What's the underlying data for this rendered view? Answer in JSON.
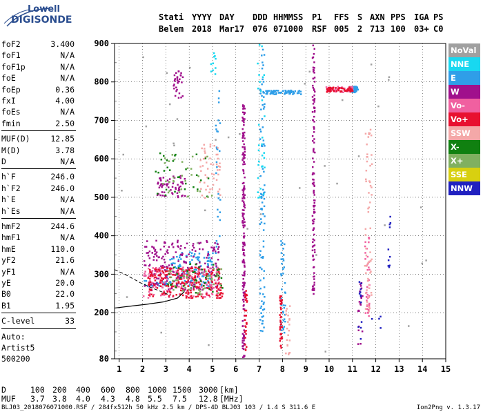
{
  "logo": {
    "line1": "Lowell",
    "line2": "DIGISONDE"
  },
  "header": {
    "labels": [
      "Stati",
      "YYYY",
      "DAY",
      "DDD",
      "HHMMSS",
      "P1",
      "FFS",
      "S",
      "AXN",
      "PPS",
      "IGA",
      "PS"
    ],
    "values": [
      "Belem",
      "2018",
      "Mar17",
      "076",
      "071000",
      "RSF",
      "005",
      "2",
      "713",
      "100",
      "03+",
      "C0"
    ]
  },
  "params": {
    "group1": [
      {
        "k": "foF2",
        "v": "3.400"
      },
      {
        "k": "foF1",
        "v": "N/A"
      },
      {
        "k": "foF1p",
        "v": "N/A"
      },
      {
        "k": "foE",
        "v": "N/A"
      },
      {
        "k": "foEp",
        "v": "0.36"
      },
      {
        "k": "fxI",
        "v": "4.00"
      },
      {
        "k": "foEs",
        "v": "N/A"
      },
      {
        "k": "fmin",
        "v": "2.50"
      }
    ],
    "group2": [
      {
        "k": "MUF(D)",
        "v": "12.85"
      },
      {
        "k": "M(D)",
        "v": "3.78"
      },
      {
        "k": "D",
        "v": "N/A"
      }
    ],
    "group3": [
      {
        "k": "h`F",
        "v": "246.0"
      },
      {
        "k": "h`F2",
        "v": "246.0"
      },
      {
        "k": "h`E",
        "v": "N/A"
      },
      {
        "k": "h`Es",
        "v": "N/A"
      }
    ],
    "group4": [
      {
        "k": "hmF2",
        "v": "244.6"
      },
      {
        "k": "hmF1",
        "v": "N/A"
      },
      {
        "k": "hmE",
        "v": "110.0"
      },
      {
        "k": "yF2",
        "v": "21.6"
      },
      {
        "k": "yF1",
        "v": "N/A"
      },
      {
        "k": "yE",
        "v": "20.0"
      },
      {
        "k": "B0",
        "v": "22.0"
      },
      {
        "k": "B1",
        "v": "1.95"
      }
    ],
    "clevel": {
      "k": "C-level",
      "v": "33"
    },
    "auto": [
      "Auto:",
      "Artist5",
      "500200"
    ]
  },
  "legend": [
    {
      "label": "NoVal",
      "color": "#a0a0a0"
    },
    {
      "label": "NNE",
      "color": "#18d8f0"
    },
    {
      "label": "E",
      "color": "#2f9ee8"
    },
    {
      "label": "W",
      "color": "#a0108c"
    },
    {
      "label": "Vo-",
      "color": "#f060a0"
    },
    {
      "label": "Vo+",
      "color": "#e81030"
    },
    {
      "label": "SSW",
      "color": "#f4a8a8"
    },
    {
      "label": "X-",
      "color": "#108010"
    },
    {
      "label": "X+",
      "color": "#80b060"
    },
    {
      "label": "SSE",
      "color": "#d8d010"
    },
    {
      "label": "NNW",
      "color": "#2020c0"
    }
  ],
  "chart_data": {
    "type": "scatter",
    "xlim": [
      0.8,
      15.0
    ],
    "ylim": [
      80,
      900
    ],
    "x_ticks": [
      1,
      2,
      3,
      4,
      5,
      6,
      7,
      8,
      9,
      10,
      11,
      12,
      13,
      14,
      15
    ],
    "y_ticks": [
      80,
      200,
      300,
      400,
      500,
      600,
      700,
      800,
      900
    ],
    "grid": true,
    "series": [
      {
        "name": "E",
        "color": "#2f9ee8",
        "clusters": [
          {
            "x": [
              10.8,
              11.2
            ],
            "y": [
              775,
              790
            ],
            "n": 60
          },
          {
            "x": [
              7.1,
              8.8
            ],
            "y": [
              770,
              780
            ],
            "n": 70
          },
          {
            "x": [
              2.0,
              3.2
            ],
            "y": [
              270,
              285
            ],
            "n": 30
          },
          {
            "x": [
              7.0,
              7.2
            ],
            "y": [
              150,
              900
            ],
            "n": 90
          },
          {
            "x": [
              3.0,
              5.0
            ],
            "y": [
              270,
              360
            ],
            "n": 120
          },
          {
            "x": [
              7.9,
              8.1
            ],
            "y": [
              150,
              410
            ],
            "n": 40
          },
          {
            "x": [
              5.1,
              5.3
            ],
            "y": [
              300,
              800
            ],
            "n": 30
          }
        ]
      },
      {
        "name": "W",
        "color": "#a0108c",
        "clusters": [
          {
            "x": [
              6.25,
              6.35
            ],
            "y": [
              85,
              760
            ],
            "n": 180
          },
          {
            "x": [
              9.25,
              9.35
            ],
            "y": [
              250,
              900
            ],
            "n": 120
          },
          {
            "x": [
              2.0,
              5.3
            ],
            "y": [
              260,
              390
            ],
            "n": 220
          },
          {
            "x": [
              2.6,
              3.8
            ],
            "y": [
              500,
              560
            ],
            "n": 60
          },
          {
            "x": [
              3.3,
              3.7
            ],
            "y": [
              760,
              830
            ],
            "n": 30
          },
          {
            "x": [
              11.2,
              11.4
            ],
            "y": [
              120,
              280
            ],
            "n": 20
          }
        ]
      },
      {
        "name": "Vo-",
        "color": "#f060a0",
        "clusters": [
          {
            "x": [
              2.0,
              5.3
            ],
            "y": [
              240,
              320
            ],
            "n": 160
          },
          {
            "x": [
              11.5,
              11.7
            ],
            "y": [
              180,
              420
            ],
            "n": 40
          },
          {
            "x": [
              9.8,
              11.0
            ],
            "y": [
              775,
              790
            ],
            "n": 40
          }
        ]
      },
      {
        "name": "Vo+",
        "color": "#e81030",
        "clusters": [
          {
            "x": [
              2.2,
              5.4
            ],
            "y": [
              240,
              320
            ],
            "n": 220
          },
          {
            "x": [
              9.8,
              11.0
            ],
            "y": [
              776,
              788
            ],
            "n": 60
          },
          {
            "x": [
              7.85,
              7.95
            ],
            "y": [
              110,
              250
            ],
            "n": 40
          },
          {
            "x": [
              6.35,
              6.45
            ],
            "y": [
              100,
              260
            ],
            "n": 30
          }
        ]
      },
      {
        "name": "SSW",
        "color": "#f4a8a8",
        "clusters": [
          {
            "x": [
              11.5,
              11.8
            ],
            "y": [
              190,
              680
            ],
            "n": 60
          },
          {
            "x": [
              4.4,
              5.3
            ],
            "y": [
              500,
              640
            ],
            "n": 50
          },
          {
            "x": [
              8.1,
              8.3
            ],
            "y": [
              90,
              220
            ],
            "n": 20
          }
        ]
      },
      {
        "name": "X-",
        "color": "#108010",
        "clusters": [
          {
            "x": [
              3.0,
              5.4
            ],
            "y": [
              250,
              330
            ],
            "n": 40
          },
          {
            "x": [
              2.5,
              4.9
            ],
            "y": [
              500,
              620
            ],
            "n": 30
          }
        ]
      },
      {
        "name": "X+",
        "color": "#80b060",
        "clusters": [
          {
            "x": [
              3.0,
              5.4
            ],
            "y": [
              250,
              320
            ],
            "n": 40
          },
          {
            "x": [
              2.8,
              5.0
            ],
            "y": [
              490,
              620
            ],
            "n": 30
          }
        ]
      },
      {
        "name": "NNE",
        "color": "#18d8f0",
        "clusters": [
          {
            "x": [
              6.9,
              7.2
            ],
            "y": [
              500,
              900
            ],
            "n": 30
          },
          {
            "x": [
              4.9,
              5.1
            ],
            "y": [
              820,
              880
            ],
            "n": 10
          }
        ]
      },
      {
        "name": "NNW",
        "color": "#2020c0",
        "clusters": [
          {
            "x": [
              12.5,
              12.6
            ],
            "y": [
              300,
              460
            ],
            "n": 10
          },
          {
            "x": [
              11.2,
              11.4
            ],
            "y": [
              120,
              320
            ],
            "n": 12
          },
          {
            "x": [
              11.8,
              12.2
            ],
            "y": [
              160,
              200
            ],
            "n": 4
          }
        ]
      },
      {
        "name": "NoVal",
        "color": "#a0a0a0",
        "clusters": [
          {
            "x": [
              1.0,
              14.5
            ],
            "y": [
              90,
              890
            ],
            "n": 40
          }
        ]
      }
    ],
    "profile_dashed": {
      "x": [
        0.8,
        1.3,
        1.9,
        2.5,
        3.2
      ],
      "y": [
        312,
        298,
        278,
        262,
        245
      ]
    },
    "profile_solid": {
      "x": [
        0.8,
        1.5,
        2.2,
        2.9,
        3.5,
        3.8
      ],
      "y": [
        212,
        217,
        222,
        228,
        238,
        255
      ]
    }
  },
  "bottom": {
    "d_label": "D",
    "d_values": [
      "100",
      "200",
      "400",
      "600",
      "800",
      "1000",
      "1500",
      "3000",
      "[km]"
    ],
    "muf_label": "MUF",
    "muf_values": [
      "3.7",
      "3.8",
      "4.0",
      "4.3",
      "4.8",
      "5.5",
      "7.5",
      "12.8",
      "[MHz]"
    ]
  },
  "footer": {
    "left": "BLJ03_2018076071000.RSF / 284fx512h 50 kHz 2.5 km / DPS-4D BLJ03 103 / 1.4 S 311.6 E",
    "right": "Ion2Png v. 1.3.17"
  }
}
